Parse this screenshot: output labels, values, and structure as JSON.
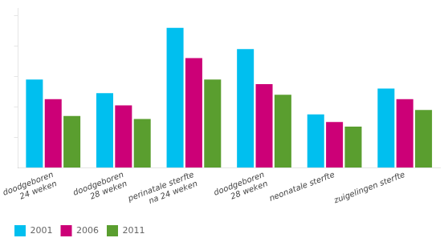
{
  "chart_data": {
    "type": "bar",
    "categories": [
      "doodgeboren\n24 weken",
      "doodgeboren\n28 weken",
      "perinatale sterfte\nna 24 weken",
      "doodgeboren\n28 weken",
      "neonatale sterfte",
      "zuigelingen sterfte"
    ],
    "series": [
      {
        "name": "2001",
        "color": "#00BFEF",
        "values": [
          5.8,
          4.9,
          9.2,
          7.8,
          3.5,
          5.2
        ]
      },
      {
        "name": "2006",
        "color": "#CC0077",
        "values": [
          4.5,
          4.1,
          7.2,
          5.5,
          3.0,
          4.5
        ]
      },
      {
        "name": "2011",
        "color": "#5A9E2F",
        "values": [
          3.4,
          3.2,
          5.8,
          4.8,
          2.7,
          3.8
        ]
      }
    ],
    "ylim": [
      0,
      10.5
    ],
    "yticks": [
      2,
      4,
      6,
      8,
      10
    ],
    "grid": false,
    "legend": "bottom",
    "tick_labels": "x"
  }
}
